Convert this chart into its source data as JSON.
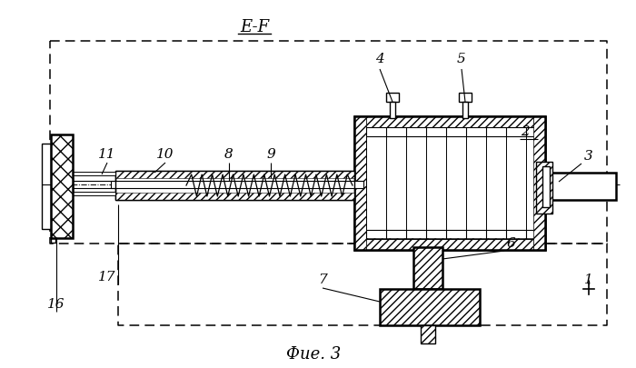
{
  "title": "E-F",
  "caption": "Фие. 3",
  "bg_color": "#ffffff",
  "line_color": "#000000",
  "labels": [
    [
      "4",
      418,
      65
    ],
    [
      "5",
      508,
      65
    ],
    [
      "2",
      578,
      145
    ],
    [
      "3",
      648,
      172
    ],
    [
      "6",
      562,
      268
    ],
    [
      "7",
      355,
      308
    ],
    [
      "8",
      252,
      170
    ],
    [
      "9",
      298,
      170
    ],
    [
      "10",
      182,
      170
    ],
    [
      "11",
      118,
      170
    ],
    [
      "16",
      62,
      335
    ],
    [
      "17",
      118,
      305
    ],
    [
      "1",
      648,
      308
    ]
  ]
}
